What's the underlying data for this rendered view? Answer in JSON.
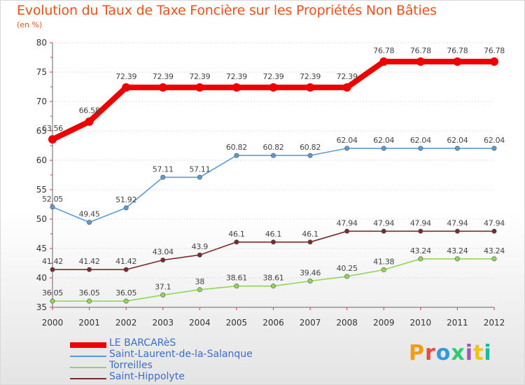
{
  "title": "Evolution du Taux de Taxe Foncière sur les Propriétés Non Bâties",
  "unit_label": "(en %)",
  "chart_data": {
    "type": "line",
    "x": [
      2000,
      2001,
      2002,
      2003,
      2004,
      2005,
      2006,
      2007,
      2008,
      2009,
      2010,
      2011,
      2012
    ],
    "ylim": [
      35,
      80
    ],
    "yticks": [
      35,
      40,
      45,
      50,
      55,
      60,
      65,
      70,
      75,
      80
    ],
    "grid": "dotted horizontal",
    "legend_position": "bottom-left",
    "series": [
      {
        "name": "LE BARCARèS",
        "color": "#ee0000",
        "values": [
          63.56,
          66.58,
          72.39,
          72.39,
          72.39,
          72.39,
          72.39,
          72.39,
          72.39,
          76.78,
          76.78,
          76.78,
          76.78
        ],
        "labels": [
          "63.56",
          "66.58",
          "72.39",
          "72.39",
          "72.39",
          "72.39",
          "72.39",
          "72.39",
          "72.39",
          "76.78",
          "76.78",
          "76.78",
          "76.78"
        ]
      },
      {
        "name": "Saint-Laurent-de-la-Salanque",
        "color": "#5b9bd5",
        "values": [
          52.05,
          49.45,
          51.92,
          57.11,
          57.11,
          60.82,
          60.82,
          60.82,
          62.04,
          62.04,
          62.04,
          62.04,
          62.04
        ],
        "labels": [
          "52.05",
          "49.45",
          "51.92",
          "57.11",
          "57.11",
          "60.82",
          "60.82",
          "60.82",
          "62.04",
          "62.04",
          "62.04",
          "62.04",
          "62.04"
        ]
      },
      {
        "name": "Torreilles",
        "color": "#8fd65a",
        "values": [
          36.05,
          36.05,
          36.05,
          37.1,
          38,
          38.61,
          38.61,
          39.46,
          40.25,
          41.38,
          43.24,
          43.24,
          43.24
        ],
        "labels": [
          "36.05",
          "36.05",
          "36.05",
          "37.1",
          "38",
          "38.61",
          "38.61",
          "39.46",
          "40.25",
          "41.38",
          "43.24",
          "43.24",
          "43.24"
        ]
      },
      {
        "name": "Saint-Hippolyte",
        "color": "#7a2a2a",
        "values": [
          41.42,
          41.42,
          41.42,
          43.04,
          43.9,
          46.1,
          46.1,
          46.1,
          47.94,
          47.94,
          47.94,
          47.94,
          47.94
        ],
        "labels": [
          "41.42",
          "41.42",
          "41.42",
          "43.04",
          "43.9",
          "46.1",
          "46.1",
          "46.1",
          "47.94",
          "47.94",
          "47.94",
          "47.94",
          "47.94"
        ]
      }
    ]
  },
  "logo": {
    "text": "Proxiti",
    "colors": [
      "#f39c12",
      "#e74c3c",
      "#3498db",
      "#2ecc71",
      "#9b59b6",
      "#f1c40f",
      "#1abc9c"
    ]
  }
}
